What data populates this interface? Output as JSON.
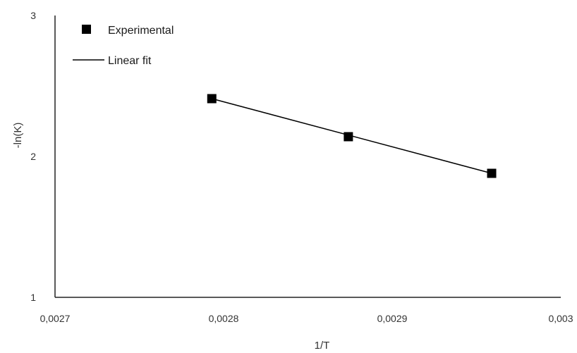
{
  "chart_data": {
    "type": "scatter",
    "xlabel": "1/T",
    "ylabel": "-ln(K)",
    "xlim": [
      0.0027,
      0.003
    ],
    "ylim": [
      1,
      3
    ],
    "x_tick_labels": [
      "0,0027",
      "0,0028",
      "0,0029",
      "0,003"
    ],
    "x_ticks": [
      0.0027,
      0.0028,
      0.0029,
      0.003
    ],
    "y_tick_labels": [
      "1",
      "2",
      "3"
    ],
    "y_ticks": [
      1,
      2,
      3
    ],
    "grid": false,
    "legend_position": "top-left",
    "series": [
      {
        "name": "Experimental",
        "marker": "square",
        "color": "#000000",
        "x": [
          0.002793,
          0.002874,
          0.002959
        ],
        "y": [
          2.41,
          2.14,
          1.88
        ]
      },
      {
        "name": "Linear fit",
        "style": "line",
        "color": "#000000",
        "x": [
          0.002793,
          0.002959
        ],
        "y": [
          2.41,
          1.88
        ]
      }
    ]
  }
}
